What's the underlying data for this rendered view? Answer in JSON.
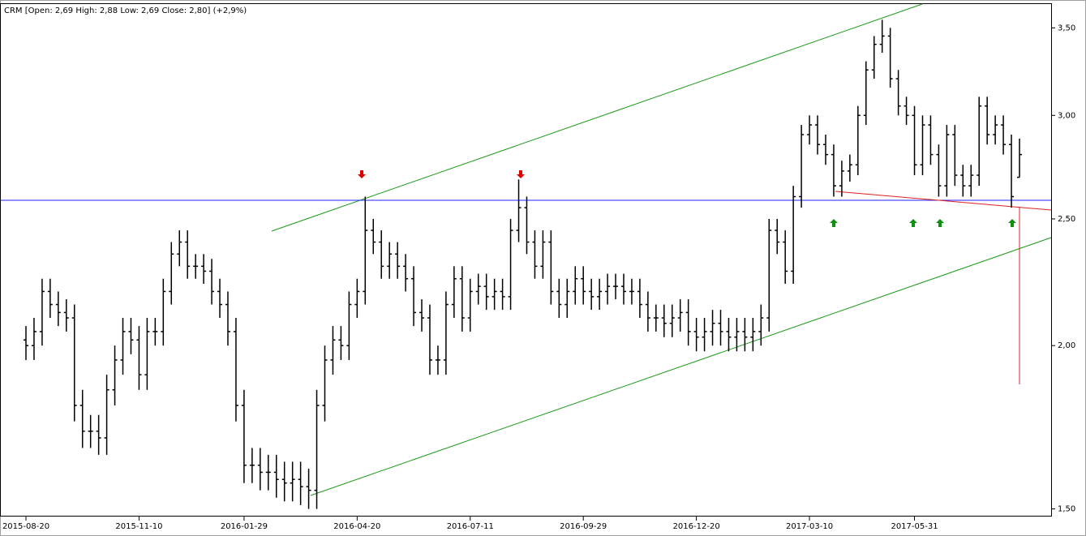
{
  "chart_data": {
    "type": "ohlc",
    "title": "CRM [Open: 2,69  High: 2,88  Low: 2,69  Close: 2,80] (+2,9%)",
    "log_scale": true,
    "color": "#000000",
    "ylim": [
      1.48,
      3.65
    ],
    "yticks": [
      {
        "value": 1.5,
        "label": "1,50"
      },
      {
        "value": 2.0,
        "label": "2,00"
      },
      {
        "value": 2.5,
        "label": "2,50"
      },
      {
        "value": 3.0,
        "label": "3,00"
      },
      {
        "value": 3.5,
        "label": "3,50"
      }
    ],
    "categories": [
      "2015-08-20",
      null,
      null,
      null,
      null,
      null,
      null,
      null,
      null,
      null,
      null,
      null,
      null,
      null,
      "2015-11-10",
      null,
      null,
      null,
      null,
      null,
      null,
      null,
      null,
      null,
      null,
      null,
      null,
      "2016-01-29",
      null,
      null,
      null,
      null,
      null,
      null,
      null,
      null,
      null,
      null,
      null,
      null,
      null,
      "2016-04-20",
      null,
      null,
      null,
      null,
      null,
      null,
      null,
      null,
      null,
      null,
      null,
      null,
      null,
      "2016-07-11",
      null,
      null,
      null,
      null,
      null,
      null,
      null,
      null,
      null,
      null,
      null,
      null,
      null,
      "2016-09-29",
      null,
      null,
      null,
      null,
      null,
      null,
      null,
      null,
      null,
      null,
      null,
      null,
      null,
      "2016-12-20",
      null,
      null,
      null,
      null,
      null,
      null,
      null,
      null,
      null,
      null,
      null,
      null,
      null,
      "2017-03-10",
      null,
      null,
      null,
      null,
      null,
      null,
      null,
      null,
      null,
      null,
      null,
      null,
      "2017-05-31",
      null,
      null,
      null,
      null,
      null,
      null,
      null,
      null,
      null,
      null,
      null,
      null,
      null
    ],
    "open": [
      2.02,
      2.0,
      2.05,
      2.2,
      2.15,
      2.12,
      2.1,
      1.8,
      1.72,
      1.72,
      1.7,
      1.85,
      1.95,
      2.05,
      2.02,
      1.9,
      2.05,
      2.05,
      2.2,
      2.35,
      2.4,
      2.3,
      2.3,
      2.28,
      2.2,
      2.15,
      2.05,
      1.8,
      1.62,
      1.62,
      1.6,
      1.6,
      1.58,
      1.57,
      1.58,
      1.56,
      1.55,
      1.8,
      1.95,
      2.02,
      2.0,
      2.15,
      2.2,
      2.45,
      2.4,
      2.3,
      2.35,
      2.3,
      2.25,
      2.12,
      2.1,
      1.95,
      1.95,
      2.15,
      2.25,
      2.1,
      2.2,
      2.22,
      2.18,
      2.2,
      2.18,
      2.45,
      2.55,
      2.4,
      2.3,
      2.4,
      2.2,
      2.15,
      2.2,
      2.25,
      2.2,
      2.18,
      2.2,
      2.22,
      2.22,
      2.2,
      2.2,
      2.15,
      2.1,
      2.1,
      2.08,
      2.1,
      2.12,
      2.05,
      2.03,
      2.05,
      2.08,
      2.05,
      2.03,
      2.05,
      2.03,
      2.05,
      2.1,
      2.45,
      2.4,
      2.28,
      2.6,
      2.9,
      2.95,
      2.85,
      2.8,
      2.65,
      2.72,
      2.75,
      3.0,
      3.25,
      3.4,
      3.45,
      3.2,
      3.05,
      3.0,
      2.75,
      2.95,
      2.8,
      2.65,
      2.9,
      2.7,
      2.65,
      2.7,
      3.05,
      2.9,
      2.95,
      2.85,
      2.69
    ],
    "high": [
      2.07,
      2.1,
      2.25,
      2.25,
      2.2,
      2.17,
      2.15,
      1.85,
      1.77,
      1.77,
      1.9,
      2.0,
      2.1,
      2.1,
      2.07,
      2.1,
      2.1,
      2.25,
      2.4,
      2.45,
      2.45,
      2.35,
      2.35,
      2.33,
      2.25,
      2.2,
      2.1,
      1.85,
      1.67,
      1.67,
      1.65,
      1.65,
      1.63,
      1.63,
      1.63,
      1.61,
      1.85,
      2.0,
      2.07,
      2.07,
      2.2,
      2.25,
      2.6,
      2.5,
      2.45,
      2.4,
      2.4,
      2.35,
      2.3,
      2.17,
      2.15,
      2.0,
      2.2,
      2.3,
      2.3,
      2.25,
      2.27,
      2.27,
      2.25,
      2.25,
      2.5,
      2.68,
      2.6,
      2.45,
      2.45,
      2.45,
      2.25,
      2.25,
      2.3,
      2.3,
      2.25,
      2.25,
      2.27,
      2.27,
      2.27,
      2.25,
      2.25,
      2.2,
      2.15,
      2.15,
      2.15,
      2.17,
      2.17,
      2.1,
      2.1,
      2.13,
      2.13,
      2.1,
      2.1,
      2.1,
      2.1,
      2.15,
      2.5,
      2.5,
      2.45,
      2.65,
      2.95,
      3.0,
      3.0,
      2.9,
      2.85,
      2.77,
      2.8,
      3.05,
      3.3,
      3.45,
      3.55,
      3.5,
      3.25,
      3.1,
      3.05,
      3.0,
      3.0,
      2.85,
      2.95,
      2.95,
      2.75,
      2.75,
      3.1,
      3.1,
      3.0,
      3.0,
      2.9,
      2.88
    ],
    "low": [
      1.95,
      1.95,
      2.0,
      2.1,
      2.07,
      2.05,
      1.75,
      1.67,
      1.67,
      1.65,
      1.65,
      1.8,
      1.9,
      1.97,
      1.85,
      1.85,
      2.0,
      2.0,
      2.15,
      2.3,
      2.25,
      2.25,
      2.23,
      2.15,
      2.1,
      2.0,
      1.75,
      1.57,
      1.57,
      1.55,
      1.55,
      1.53,
      1.52,
      1.52,
      1.51,
      1.5,
      1.5,
      1.75,
      1.9,
      1.95,
      1.95,
      2.1,
      2.15,
      2.35,
      2.25,
      2.25,
      2.25,
      2.2,
      2.07,
      2.05,
      1.9,
      1.9,
      1.9,
      2.1,
      2.05,
      2.05,
      2.15,
      2.13,
      2.13,
      2.13,
      2.13,
      2.4,
      2.35,
      2.25,
      2.25,
      2.15,
      2.1,
      2.1,
      2.15,
      2.15,
      2.13,
      2.13,
      2.15,
      2.17,
      2.15,
      2.15,
      2.1,
      2.05,
      2.05,
      2.03,
      2.03,
      2.05,
      2.0,
      1.98,
      1.98,
      2.0,
      2.0,
      1.98,
      1.98,
      1.98,
      1.98,
      2.0,
      2.05,
      2.35,
      2.23,
      2.23,
      2.55,
      2.85,
      2.8,
      2.75,
      2.6,
      2.6,
      2.67,
      2.7,
      2.95,
      3.2,
      3.35,
      3.15,
      3.0,
      2.95,
      2.7,
      2.7,
      2.75,
      2.6,
      2.6,
      2.65,
      2.6,
      2.6,
      2.65,
      2.85,
      2.85,
      2.8,
      2.55,
      2.69
    ],
    "close": [
      2.0,
      2.05,
      2.2,
      2.15,
      2.12,
      2.1,
      1.8,
      1.72,
      1.72,
      1.7,
      1.85,
      1.95,
      2.05,
      2.02,
      1.9,
      2.05,
      2.05,
      2.2,
      2.35,
      2.4,
      2.3,
      2.3,
      2.28,
      2.2,
      2.15,
      2.05,
      1.8,
      1.62,
      1.62,
      1.6,
      1.6,
      1.58,
      1.57,
      1.58,
      1.56,
      1.55,
      1.8,
      1.95,
      2.02,
      2.0,
      2.15,
      2.2,
      2.45,
      2.4,
      2.3,
      2.35,
      2.3,
      2.25,
      2.12,
      2.1,
      1.95,
      1.95,
      2.15,
      2.25,
      2.1,
      2.2,
      2.22,
      2.18,
      2.2,
      2.18,
      2.45,
      2.55,
      2.4,
      2.3,
      2.4,
      2.2,
      2.15,
      2.2,
      2.25,
      2.2,
      2.18,
      2.2,
      2.22,
      2.22,
      2.2,
      2.2,
      2.15,
      2.1,
      2.1,
      2.08,
      2.1,
      2.12,
      2.05,
      2.03,
      2.05,
      2.08,
      2.05,
      2.03,
      2.05,
      2.03,
      2.05,
      2.1,
      2.45,
      2.4,
      2.28,
      2.6,
      2.9,
      2.95,
      2.85,
      2.8,
      2.65,
      2.72,
      2.75,
      3.0,
      3.25,
      3.4,
      3.45,
      3.2,
      3.05,
      3.0,
      2.75,
      2.95,
      2.8,
      2.65,
      2.9,
      2.7,
      2.65,
      2.7,
      3.05,
      2.9,
      2.95,
      2.85,
      2.6,
      2.8
    ]
  }
}
